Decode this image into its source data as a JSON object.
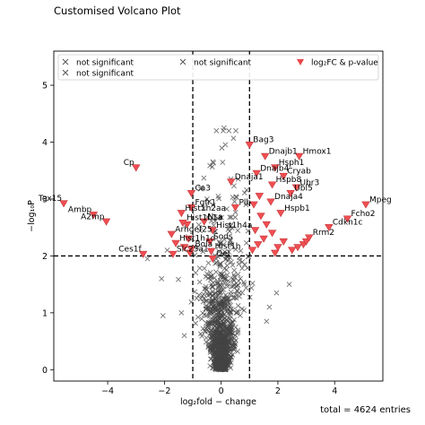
{
  "chart_data": {
    "type": "scatter",
    "title": "Customised Volcano Plot",
    "xlabel": "log₂fold − change",
    "ylabel": "−log₁₀P",
    "xlim": [
      -5.9,
      5.7
    ],
    "ylim": [
      -0.2,
      5.6
    ],
    "x_ticks": [
      -4,
      -2,
      0,
      2,
      4
    ],
    "y_ticks": [
      0,
      1,
      2,
      3,
      4,
      5
    ],
    "grid": false,
    "legend_position": "top",
    "thresholds": {
      "fold_change": [
        -1,
        1
      ],
      "p_value": 2
    },
    "legend": [
      {
        "label": "not significant",
        "marker": "x",
        "color": "#555555"
      },
      {
        "label": "not significant",
        "marker": "x",
        "color": "#555555"
      },
      {
        "label": "not significant",
        "marker": "x",
        "color": "#555555"
      },
      {
        "label": "log₂FC & p-value",
        "marker": "triangle-down",
        "color": "#e8464a"
      }
    ],
    "footer": "total = 4624 entries",
    "colors": {
      "not_significant": "#444444",
      "significant": "#f04e52",
      "significant_edge": "#c63a3e"
    },
    "labeled_points": [
      {
        "label": "Bag3",
        "x": 1.0,
        "y": 3.95
      },
      {
        "label": "Dnajb1",
        "x": 1.55,
        "y": 3.75
      },
      {
        "label": "Hmox1",
        "x": 2.75,
        "y": 3.75
      },
      {
        "label": "Hsph1",
        "x": 1.9,
        "y": 3.55
      },
      {
        "label": "Dnajb4",
        "x": 1.25,
        "y": 3.45
      },
      {
        "label": "Cryab",
        "x": 2.2,
        "y": 3.4
      },
      {
        "label": "Hspb8",
        "x": 1.8,
        "y": 3.25
      },
      {
        "label": "Ubr3",
        "x": 2.65,
        "y": 3.2
      },
      {
        "label": "Dnaja1",
        "x": 0.35,
        "y": 3.3
      },
      {
        "label": "Ubl5",
        "x": 2.45,
        "y": 3.1
      },
      {
        "label": "Cp",
        "x": -3.0,
        "y": 3.55
      },
      {
        "label": "Dnaja4",
        "x": 1.75,
        "y": 2.95
      },
      {
        "label": "Mpeg",
        "x": 5.1,
        "y": 2.9
      },
      {
        "label": "Ca3",
        "x": -1.05,
        "y": 3.1
      },
      {
        "label": "Tex15",
        "x": -5.55,
        "y": 2.92
      },
      {
        "label": "Fgfr1",
        "x": -1.05,
        "y": 2.85
      },
      {
        "label": "Hspb1",
        "x": 2.1,
        "y": 2.75
      },
      {
        "label": "Hist1h2aa",
        "x": -1.4,
        "y": 2.75
      },
      {
        "label": "Ambp",
        "x": -4.5,
        "y": 2.72
      },
      {
        "label": "Fcho2",
        "x": 4.45,
        "y": 2.65
      },
      {
        "label": "A2mp",
        "x": -4.05,
        "y": 2.6
      },
      {
        "label": "Hist1b1a",
        "x": -1.35,
        "y": 2.58
      },
      {
        "label": "Cdkn1c",
        "x": 3.8,
        "y": 2.5
      },
      {
        "label": "Arhgef25",
        "x": -1.75,
        "y": 2.38
      },
      {
        "label": "Rrm2",
        "x": 3.1,
        "y": 2.32
      },
      {
        "label": "Hist1h1d",
        "x": -1.6,
        "y": 2.22
      },
      {
        "label": "Ces1f",
        "x": -2.75,
        "y": 2.03
      },
      {
        "label": "Slc25a1",
        "x": -1.7,
        "y": 2.03
      },
      {
        "label": "Nsa",
        "x": -0.6,
        "y": 2.6
      },
      {
        "label": "Hist1h4a",
        "x": -0.3,
        "y": 2.45
      },
      {
        "label": "Sods",
        "x": -0.4,
        "y": 2.25
      },
      {
        "label": "Bola",
        "x": -1.05,
        "y": 2.12
      },
      {
        "label": "Hist1h",
        "x": -0.35,
        "y": 2.08
      },
      {
        "label": "Oel",
        "x": -0.3,
        "y": 1.95
      },
      {
        "label": "Plb",
        "x": 0.5,
        "y": 2.85
      }
    ]
  }
}
